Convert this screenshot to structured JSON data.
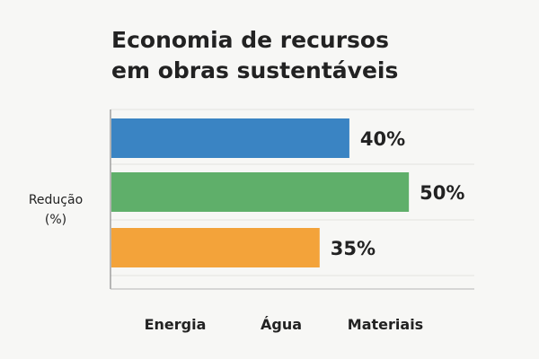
{
  "chart_data": {
    "type": "bar",
    "orientation": "horizontal",
    "title_lines": [
      "Economia de recursos",
      "em obras sustentáveis"
    ],
    "ylabel_lines": [
      "Redução",
      "(%)"
    ],
    "xlabel": "",
    "categories": [
      "Energia",
      "Água",
      "Materiais"
    ],
    "values": [
      40,
      50,
      35
    ],
    "value_labels": [
      "40%",
      "50%",
      "35%"
    ],
    "colors": [
      "#3a84c3",
      "#5faf6a",
      "#f3a33a"
    ],
    "xlim": [
      0,
      61
    ],
    "grid": true
  }
}
